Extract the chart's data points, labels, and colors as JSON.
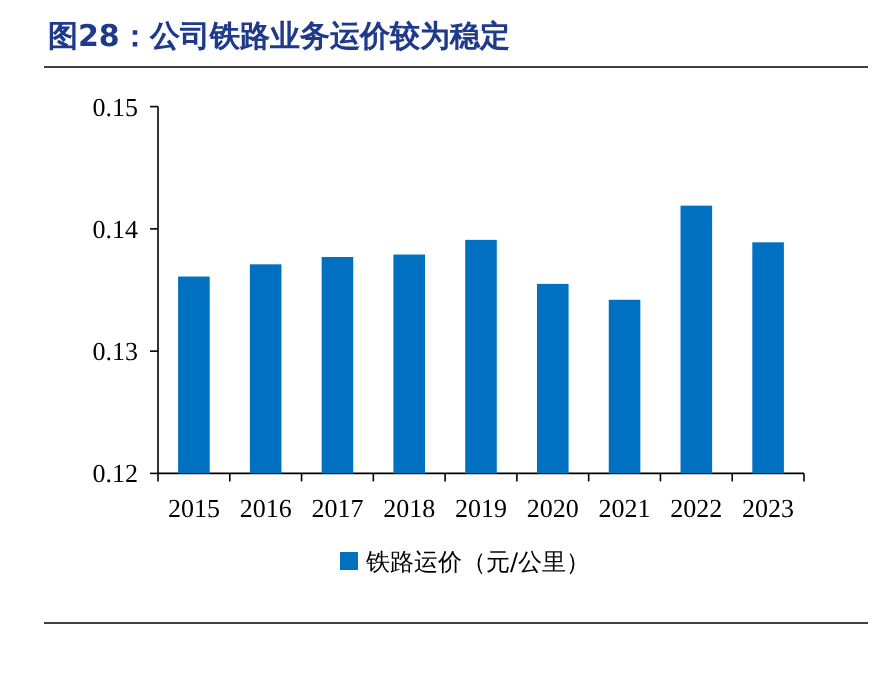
{
  "chart_data": {
    "type": "bar",
    "title": "图28：公司铁路业务运价较为稳定",
    "categories": [
      "2015",
      "2016",
      "2017",
      "2018",
      "2019",
      "2020",
      "2021",
      "2022",
      "2023"
    ],
    "series": [
      {
        "name": "铁路运价（元/公里）",
        "color": "#0070c0",
        "values": [
          0.1361,
          0.1371,
          0.1377,
          0.1379,
          0.1391,
          0.1355,
          0.1342,
          0.1419,
          0.1389
        ]
      }
    ],
    "ylim": [
      0.12,
      0.15
    ],
    "yticks": [
      0.12,
      0.13,
      0.14,
      0.15
    ],
    "grid": false,
    "legend": "bottom"
  }
}
